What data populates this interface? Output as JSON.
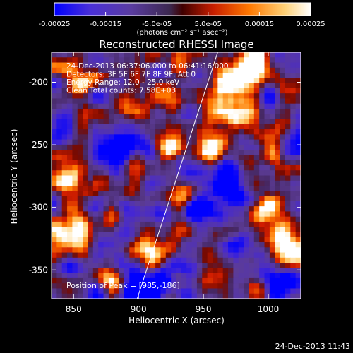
{
  "chart_data": {
    "type": "heatmap",
    "title": "Reconstructed RHESSI Image",
    "xlabel": "Heliocentric X (arcsec)",
    "ylabel": "Heliocentric Y (arcsec)",
    "xlim": [
      833,
      1025
    ],
    "ylim": [
      -373,
      -176
    ],
    "x_ticks": [
      850,
      900,
      950,
      1000
    ],
    "y_ticks": [
      -200,
      -250,
      -300,
      -350
    ],
    "x_tick_labels": [
      "850",
      "900",
      "950",
      "1000"
    ],
    "y_tick_labels": [
      "-200",
      "-250",
      "-300",
      "-350"
    ],
    "colorbar": {
      "range": [
        -0.00025,
        0.00025
      ],
      "ticks": [
        -0.00025,
        -0.00015,
        -5e-05,
        5e-05,
        0.00015,
        0.00025
      ],
      "tick_labels": [
        "-0.00025",
        "-0.00015",
        "-5.0e-05",
        "5.0e-05",
        "0.00015",
        "0.00025"
      ],
      "units_label": "(photons cm⁻² s⁻¹ asec⁻²)"
    },
    "info_lines": [
      "24-Dec-2013 06:37:06.000 to 06:41:16.000",
      "Detectors: 3F 5F 6F 7F 8F 9F, Att 0",
      "Energy Range: 12.0 - 25.0 keV",
      "Clean     Total counts: 7.58E+03"
    ],
    "peak_label": "Position of Peak = [985,-186]",
    "peak": [
      985,
      -186
    ],
    "limb_line": [
      [
        899,
        -373
      ],
      [
        961,
        -176
      ]
    ],
    "colormap_stops": [
      "#0000ff",
      "#5a3cb4",
      "#5a3c8c",
      "#50326e",
      "#d21e00",
      "#ff7800",
      "#ffd278",
      "#ffffff"
    ]
  },
  "footer": {
    "timestamp": "24-Dec-2013 11:43"
  }
}
